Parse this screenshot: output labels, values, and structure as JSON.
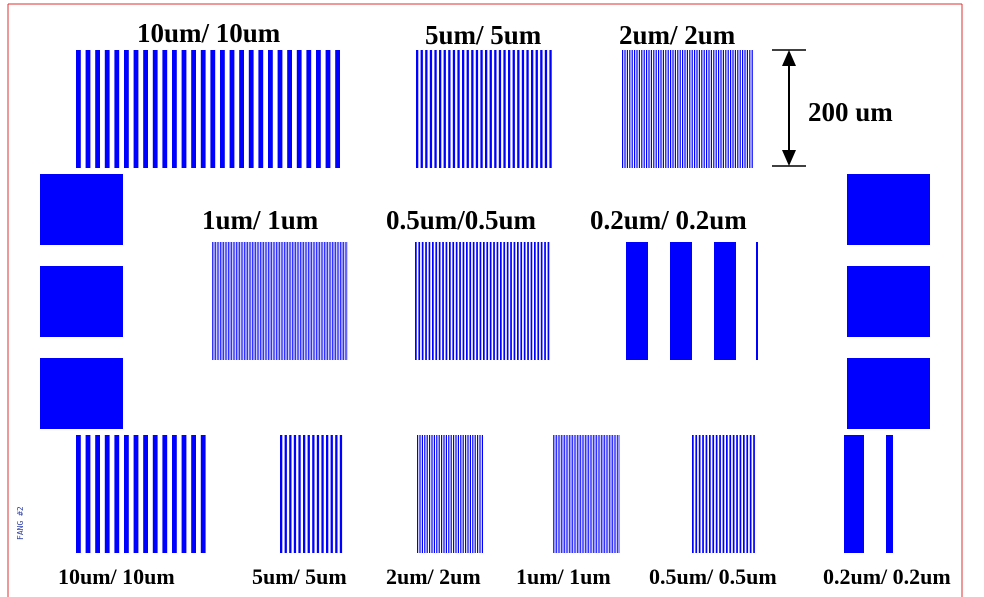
{
  "colors": {
    "pattern": "#0000ff",
    "border": "#e03030",
    "text": "#000000"
  },
  "labels": {
    "top_row": [
      "10um/ 10um",
      "5um/ 5um",
      "2um/ 2um"
    ],
    "middle_row": [
      "1um/ 1um",
      "0.5um/0.5um",
      "0.2um/ 0.2um"
    ],
    "bottom_row": [
      "10um/ 10um",
      "5um/ 5um",
      "2um/ 2um",
      "1um/ 1um",
      "0.5um/ 0.5um",
      "0.2um/ 0.2um"
    ],
    "dimension": "200 um",
    "vertical_text": "FANG #2"
  }
}
